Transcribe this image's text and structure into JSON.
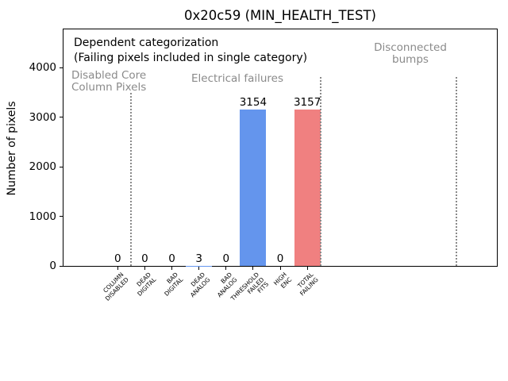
{
  "chart_data": {
    "type": "bar",
    "title": "0x20c59 (MIN_HEALTH_TEST)",
    "ylabel": "Number of pixels",
    "xlabel": "",
    "categories": [
      [
        "COLUMN",
        "DISABLED"
      ],
      [
        "DEAD",
        "DIGITAL"
      ],
      [
        "BAD",
        "DIGITAL"
      ],
      [
        "DEAD",
        "ANALOG"
      ],
      [
        "BAD",
        "ANALOG"
      ],
      [
        "THRESHOLD",
        "FAILED",
        "FITS"
      ],
      [
        "HIGH",
        "ENC"
      ],
      [
        "TOTAL",
        "FAILING"
      ]
    ],
    "values": [
      0,
      0,
      0,
      3,
      0,
      3154,
      0,
      3157
    ],
    "bar_colors": [
      "#6495ed",
      "#6495ed",
      "#6495ed",
      "#6495ed",
      "#6495ed",
      "#6495ed",
      "#6495ed",
      "#f08080"
    ],
    "yticks": [
      0,
      1000,
      2000,
      3000,
      4000
    ],
    "ylim": [
      0,
      4770
    ],
    "xlim": [
      -2,
      14
    ],
    "grid": false,
    "legend": null,
    "annotations": [
      {
        "text": "Dependent categorization",
        "color": "#000000"
      },
      {
        "text": "(Failing pixels included in single category)",
        "color": "#000000"
      }
    ],
    "region_labels": [
      {
        "id": "disabled-core-column-pixels",
        "lines": [
          "Disabled Core",
          "Column Pixels"
        ],
        "color": "#8a8a8a",
        "align": "left"
      },
      {
        "id": "electrical-failures",
        "lines": [
          "Electrical failures"
        ],
        "color": "#8a8a8a",
        "align": "center"
      },
      {
        "id": "disconnected-bumps",
        "lines": [
          "Disconnected",
          "bumps"
        ],
        "color": "#8a8a8a",
        "align": "center"
      }
    ],
    "dividers": [
      {
        "x": 0.5
      },
      {
        "x": 7.5
      },
      {
        "x": 12.5
      }
    ]
  }
}
